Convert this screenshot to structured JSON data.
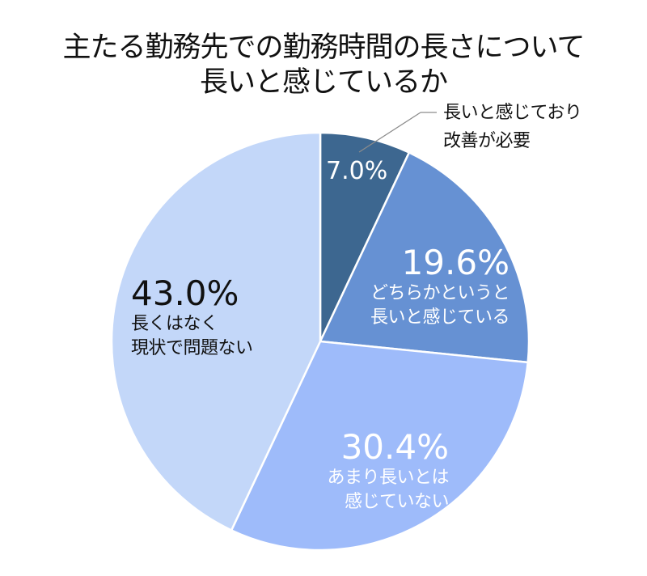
{
  "chart_data": {
    "type": "pie",
    "title": "主たる勤務先での勤務時間の長さについて 長いと感じているか",
    "title_lines": [
      "主たる勤務先での勤務時間の長さについて",
      "長いと感じているか"
    ],
    "start_angle": "12 o'clock, clockwise",
    "slices": [
      {
        "label": "長いと感じており改善が必要",
        "label_lines": [
          "長いと感じており",
          "改善が必要"
        ],
        "value": 7.0,
        "value_label": "7.0%",
        "color": "#3D6790"
      },
      {
        "label": "どちらかというと長いと感じている",
        "label_lines": [
          "どちらかというと",
          "長いと感じている"
        ],
        "value": 19.6,
        "value_label": "19.6%",
        "color": "#6691D3"
      },
      {
        "label": "あまり長いとは感じていない",
        "label_lines": [
          "あまり長いとは",
          "感じていない"
        ],
        "value": 30.4,
        "value_label": "30.4%",
        "color": "#9EBBFA"
      },
      {
        "label": "長くはなく現状で問題ない",
        "label_lines": [
          "長くはなく",
          "現状で問題ない"
        ],
        "value": 43.0,
        "value_label": "43.0%",
        "color": "#C3D7F9"
      }
    ],
    "legend": "none (labels placed on slices; first slice label uses callout leader line)"
  },
  "colors": {
    "slice_border": "#ffffff",
    "leader_line": "#8c8c8c"
  }
}
